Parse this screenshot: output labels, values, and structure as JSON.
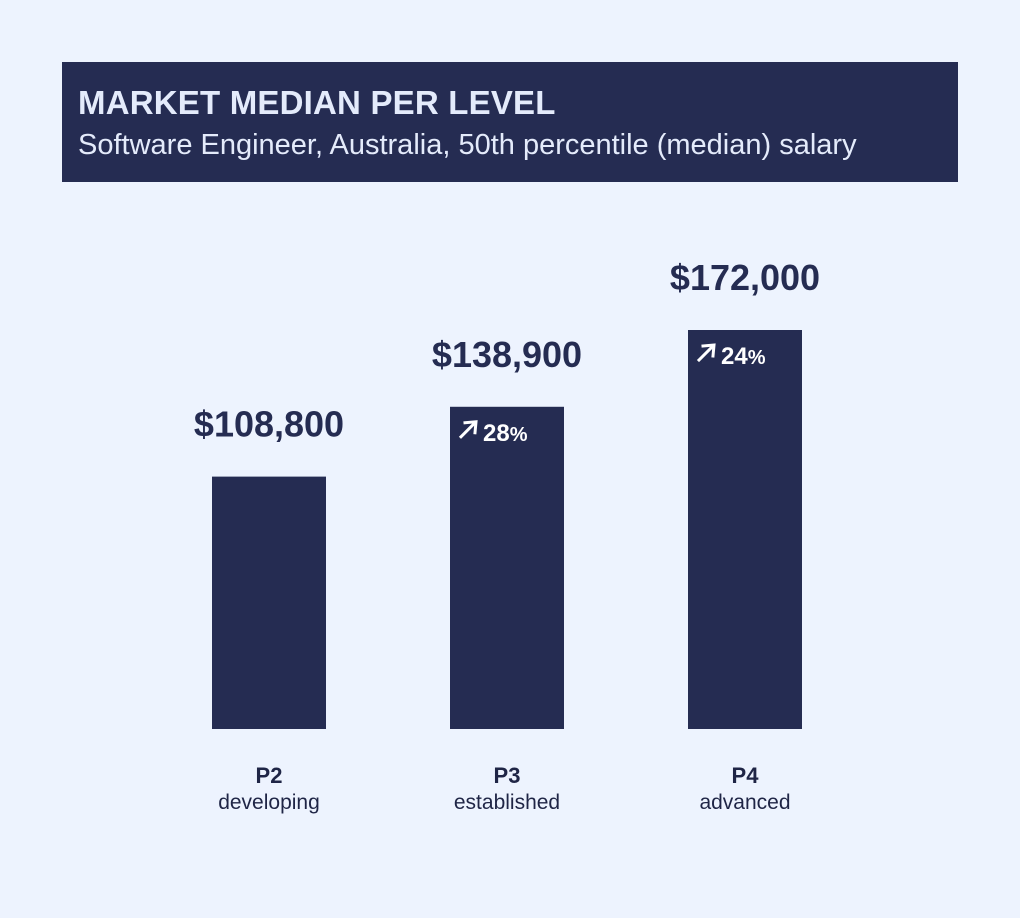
{
  "header": {
    "title": "MARKET MEDIAN PER LEVEL",
    "subtitle": "Software Engineer, Australia, 50th percentile (median) salary"
  },
  "colors": {
    "background": "#edf3fe",
    "bar": "#252c52",
    "header_bg": "#252c52",
    "header_text": "#e4ebfb"
  },
  "chart_data": {
    "type": "bar",
    "title": "MARKET MEDIAN PER LEVEL",
    "subtitle": "Software Engineer, Australia, 50th percentile (median) salary",
    "categories": [
      "P2",
      "P3",
      "P4"
    ],
    "category_sublabels": [
      "developing",
      "established",
      "advanced"
    ],
    "values": [
      108800,
      138900,
      172000
    ],
    "value_labels": [
      "$108,800",
      "$138,900",
      "$172,000"
    ],
    "growth_labels": [
      "",
      "28%",
      "24%"
    ],
    "growth_icon": "arrow-up-right-icon",
    "xlabel": "",
    "ylabel": "",
    "ylim": [
      0,
      172000
    ],
    "grid": false,
    "legend": "none"
  }
}
